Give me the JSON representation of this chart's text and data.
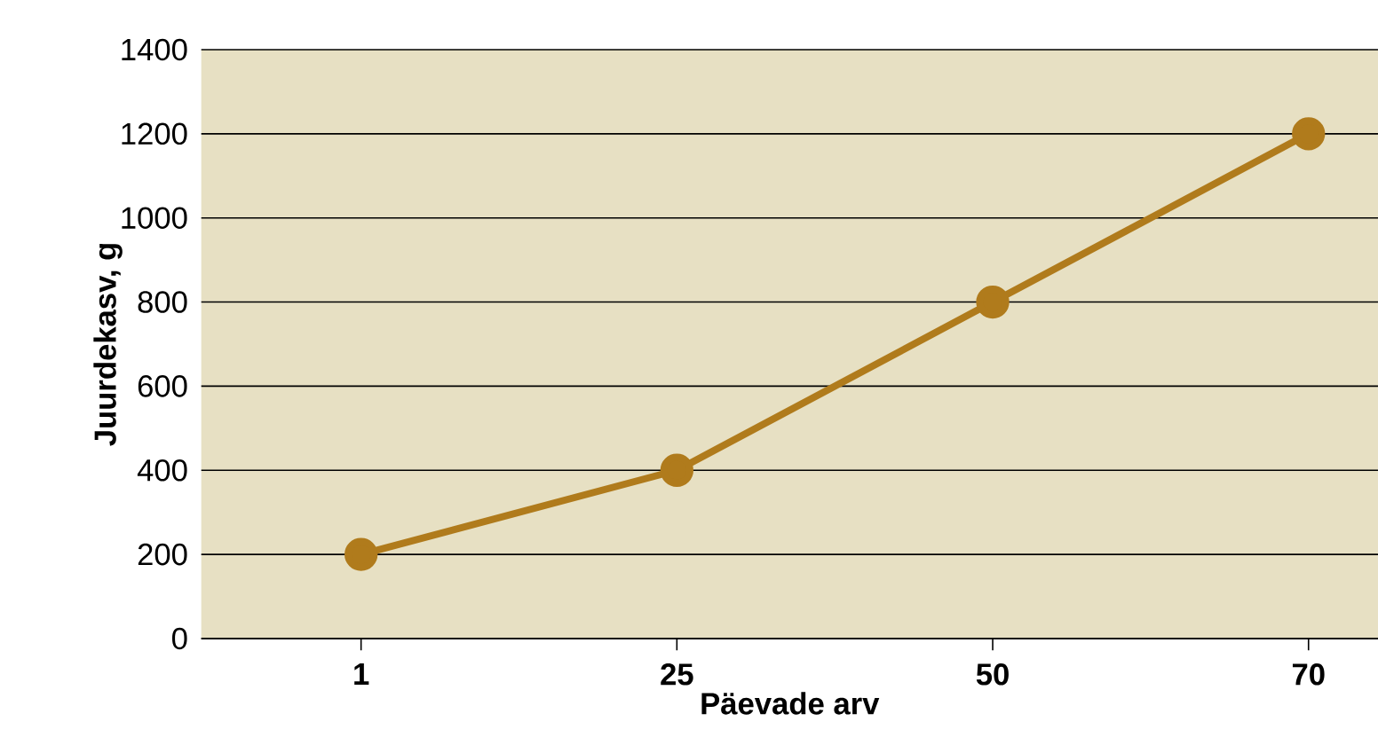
{
  "chart_data": {
    "type": "line",
    "xlabel": "Päevade arv",
    "ylabel": "Juurdekasv, g",
    "categories": [
      "1",
      "25",
      "50",
      "70"
    ],
    "series": [
      {
        "color": "#b07b1c",
        "values": [
          200,
          400,
          800,
          1200
        ]
      }
    ],
    "ylim": [
      0,
      1400
    ],
    "yticks": [
      0,
      200,
      400,
      600,
      800,
      1000,
      1200,
      1400
    ],
    "grid": "y",
    "marker": "circle",
    "line_style": "solid"
  }
}
